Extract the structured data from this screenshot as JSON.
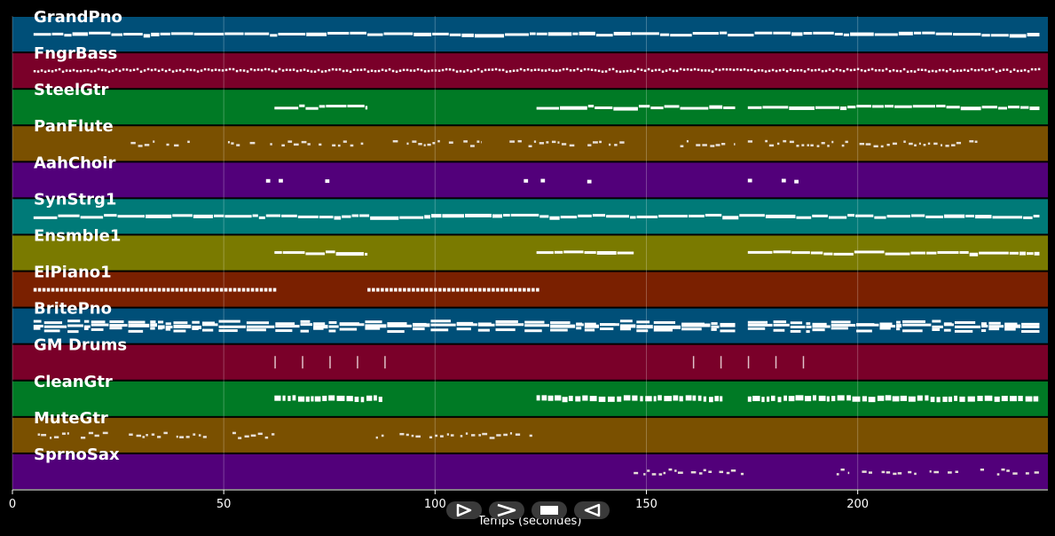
{
  "chart_data": {
    "type": "piano-roll",
    "xlabel": "Temps (secondes)",
    "xlim": [
      0,
      245
    ],
    "xticks": [
      0,
      50,
      100,
      150,
      200
    ],
    "grid": true,
    "tracks": [
      {
        "name": "GrandPno",
        "color": "#004f78",
        "segments": [
          [
            5,
            243
          ]
        ],
        "style": "dense"
      },
      {
        "name": "FngrBass",
        "color": "#7a0029",
        "segments": [
          [
            5,
            243
          ]
        ],
        "style": "dotted"
      },
      {
        "name": "SteelGtr",
        "color": "#007a25",
        "segments": [
          [
            62,
            84
          ],
          [
            124,
            171
          ],
          [
            174,
            243
          ]
        ],
        "style": "dense"
      },
      {
        "name": "PanFlute",
        "color": "#7a5000",
        "segments": [
          [
            28,
            42
          ],
          [
            51,
            83
          ],
          [
            90,
            111
          ],
          [
            113,
            145
          ],
          [
            158,
            171
          ],
          [
            174,
            229
          ]
        ],
        "style": "sparse"
      },
      {
        "name": "AahChoir",
        "color": "#52007a",
        "segments": [
          [
            60,
            61
          ],
          [
            63,
            64
          ],
          [
            74,
            75
          ],
          [
            121,
            122
          ],
          [
            125,
            126
          ],
          [
            136,
            137
          ],
          [
            174,
            175
          ],
          [
            182,
            183
          ],
          [
            185,
            186
          ]
        ],
        "style": "blip"
      },
      {
        "name": "SynStrg1",
        "color": "#007a78",
        "segments": [
          [
            5,
            243
          ]
        ],
        "style": "dense"
      },
      {
        "name": "Ensmble1",
        "color": "#7a7a00",
        "segments": [
          [
            62,
            84
          ],
          [
            124,
            147
          ],
          [
            174,
            243
          ]
        ],
        "style": "dense"
      },
      {
        "name": "ElPiano1",
        "color": "#7a2000",
        "segments": [
          [
            5,
            62
          ],
          [
            84,
            124
          ]
        ],
        "style": "dashed"
      },
      {
        "name": "BritePno",
        "color": "#004f78",
        "segments": [
          [
            5,
            171
          ],
          [
            174,
            243
          ]
        ],
        "style": "thick"
      },
      {
        "name": "GM Drums",
        "color": "#7a0029",
        "segments": [
          [
            62,
            62.5
          ],
          [
            68.5,
            69
          ],
          [
            75,
            75.5
          ],
          [
            81.5,
            82
          ],
          [
            88,
            88.5
          ],
          [
            161,
            161.5
          ],
          [
            167.5,
            168
          ],
          [
            174,
            174.5
          ],
          [
            180.5,
            181
          ],
          [
            187,
            187.5
          ]
        ],
        "style": "tick"
      },
      {
        "name": "CleanGtr",
        "color": "#007a25",
        "segments": [
          [
            62,
            88
          ],
          [
            124,
            168
          ],
          [
            174,
            243
          ]
        ],
        "style": "chunky"
      },
      {
        "name": "MuteGtr",
        "color": "#7a5000",
        "segments": [
          [
            6,
            62
          ],
          [
            86,
            123
          ]
        ],
        "style": "sparse"
      },
      {
        "name": "SprnoSax",
        "color": "#52007a",
        "segments": [
          [
            147,
            173
          ],
          [
            195,
            198
          ],
          [
            201,
            214
          ],
          [
            217,
            227
          ],
          [
            229,
            243
          ]
        ],
        "style": "sparse"
      }
    ]
  },
  "playback": {
    "play_label": "play",
    "forward_label": "forward",
    "stop_label": "stop",
    "back_label": "back"
  }
}
